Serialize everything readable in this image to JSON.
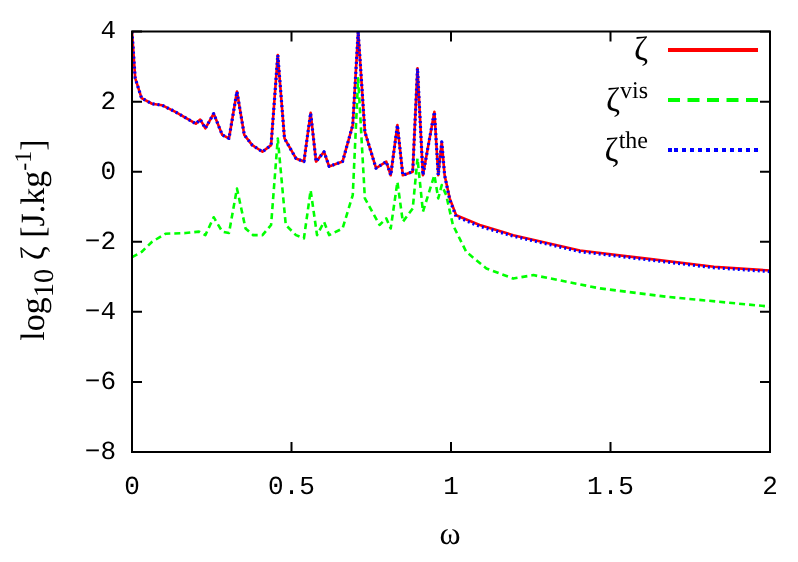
{
  "chart_data": {
    "type": "line",
    "xlabel": "ω",
    "ylabel": "log$_{10}$ ζ [J.kg$^{-1}$]",
    "xlim": [
      0,
      2
    ],
    "xticks": [
      0,
      0.5,
      1,
      1.5,
      2
    ],
    "ylim": [
      -8,
      4
    ],
    "yticks": [
      -8,
      -6,
      -4,
      -2,
      0,
      2,
      4
    ],
    "grid": false,
    "legend": "top right",
    "marker": "none",
    "series": [
      {
        "name": "ζ",
        "color": "#ff0000",
        "line_style": "solid",
        "x": [
          0,
          0.01,
          0.03,
          0.063,
          0.094,
          0.136,
          0.178,
          0.2,
          0.214,
          0.23,
          0.256,
          0.283,
          0.304,
          0.329,
          0.352,
          0.377,
          0.409,
          0.436,
          0.457,
          0.478,
          0.514,
          0.539,
          0.56,
          0.577,
          0.602,
          0.618,
          0.66,
          0.692,
          0.709,
          0.73,
          0.765,
          0.797,
          0.811,
          0.832,
          0.849,
          0.88,
          0.895,
          0.912,
          0.948,
          0.96,
          0.971,
          0.98,
          0.996,
          1.016,
          1.09,
          1.195,
          1.404,
          1.614,
          1.824,
          2
        ],
        "values": [
          4,
          2.67,
          2.1,
          1.94,
          1.9,
          1.71,
          1.49,
          1.37,
          1.49,
          1.24,
          1.66,
          1.05,
          0.95,
          2.29,
          1.05,
          0.76,
          0.57,
          0.76,
          3.33,
          0.95,
          0.38,
          0.29,
          1.68,
          0.29,
          0.57,
          0.15,
          0.29,
          1.33,
          4,
          1.14,
          0.1,
          0.29,
          -0.1,
          1.33,
          -0.1,
          0,
          2.95,
          -0.1,
          1.71,
          -0.1,
          0.85,
          -0.1,
          -0.76,
          -1.24,
          -1.52,
          -1.81,
          -2.25,
          -2.48,
          -2.71,
          -2.82
        ]
      },
      {
        "name": "ζ$^{vis}$",
        "color": "#00ff00",
        "line_style": "dashed",
        "x": [
          0,
          0.03,
          0.063,
          0.105,
          0.168,
          0.21,
          0.23,
          0.256,
          0.283,
          0.304,
          0.329,
          0.356,
          0.38,
          0.409,
          0.436,
          0.457,
          0.482,
          0.514,
          0.539,
          0.56,
          0.58,
          0.602,
          0.618,
          0.66,
          0.692,
          0.709,
          0.73,
          0.776,
          0.797,
          0.811,
          0.832,
          0.849,
          0.88,
          0.895,
          0.912,
          0.948,
          0.96,
          0.971,
          0.985,
          1.006,
          1.048,
          1.111,
          1.195,
          1.258,
          1.467,
          1.677,
          2
        ],
        "values": [
          -2.44,
          -2.29,
          -2,
          -1.77,
          -1.75,
          -1.71,
          -1.81,
          -1.3,
          -1.71,
          -1.75,
          -0.48,
          -1.62,
          -1.81,
          -1.81,
          -1.52,
          0.95,
          -1.52,
          -1.81,
          -1.9,
          -0.53,
          -1.81,
          -1.43,
          -1.81,
          -1.62,
          -0.67,
          2.67,
          -0.76,
          -1.52,
          -1.33,
          -1.62,
          -0.29,
          -1.43,
          -1.05,
          0.38,
          -1.14,
          -0.1,
          -0.76,
          -0.38,
          -0.67,
          -1.52,
          -2.29,
          -2.76,
          -3.05,
          -2.95,
          -3.33,
          -3.57,
          -3.85
        ]
      },
      {
        "name": "ζ$^{the}$",
        "color": "#0000ff",
        "line_style": "dotted",
        "x": [
          0,
          0.01,
          0.03,
          0.063,
          0.094,
          0.136,
          0.178,
          0.2,
          0.214,
          0.23,
          0.256,
          0.283,
          0.304,
          0.329,
          0.352,
          0.377,
          0.409,
          0.436,
          0.457,
          0.478,
          0.514,
          0.539,
          0.56,
          0.577,
          0.602,
          0.618,
          0.66,
          0.692,
          0.709,
          0.73,
          0.765,
          0.797,
          0.811,
          0.832,
          0.849,
          0.88,
          0.895,
          0.912,
          0.948,
          0.96,
          0.971,
          0.98,
          0.996,
          1.016,
          1.09,
          1.195,
          1.404,
          1.614,
          1.824,
          2
        ],
        "values": [
          4,
          2.67,
          2.1,
          1.94,
          1.9,
          1.71,
          1.49,
          1.37,
          1.49,
          1.24,
          1.66,
          1.05,
          0.95,
          2.29,
          1.05,
          0.76,
          0.57,
          0.76,
          3.33,
          0.95,
          0.38,
          0.29,
          1.68,
          0.29,
          0.57,
          0.15,
          0.29,
          1.33,
          4,
          1.14,
          0.1,
          0.29,
          -0.1,
          1.33,
          -0.1,
          0,
          2.95,
          -0.1,
          1.71,
          -0.1,
          0.85,
          -0.1,
          -0.8,
          -1.28,
          -1.56,
          -1.84,
          -2.28,
          -2.51,
          -2.74,
          -2.85
        ]
      }
    ]
  }
}
